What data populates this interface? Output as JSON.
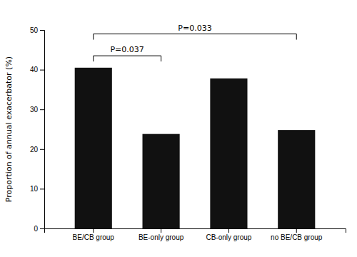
{
  "chart_data": {
    "type": "bar",
    "categories": [
      "BE/CB group",
      "BE-only group",
      "CB-only group",
      "no BE/CB group"
    ],
    "values": [
      40.5,
      23.8,
      37.8,
      24.8
    ],
    "color": "#111111",
    "ylabel": "Proportion of annual exacerbator (%)",
    "ylim": [
      0,
      50
    ],
    "yticks": [
      0,
      10,
      20,
      30,
      40,
      50
    ],
    "annotations": [
      {
        "text": "P=0.037",
        "from": "BE/CB group",
        "to": "BE-only group",
        "y": 43.5
      },
      {
        "text": "P=0.033",
        "from": "BE/CB group",
        "to": "no BE/CB group",
        "y": 49.0
      }
    ]
  }
}
